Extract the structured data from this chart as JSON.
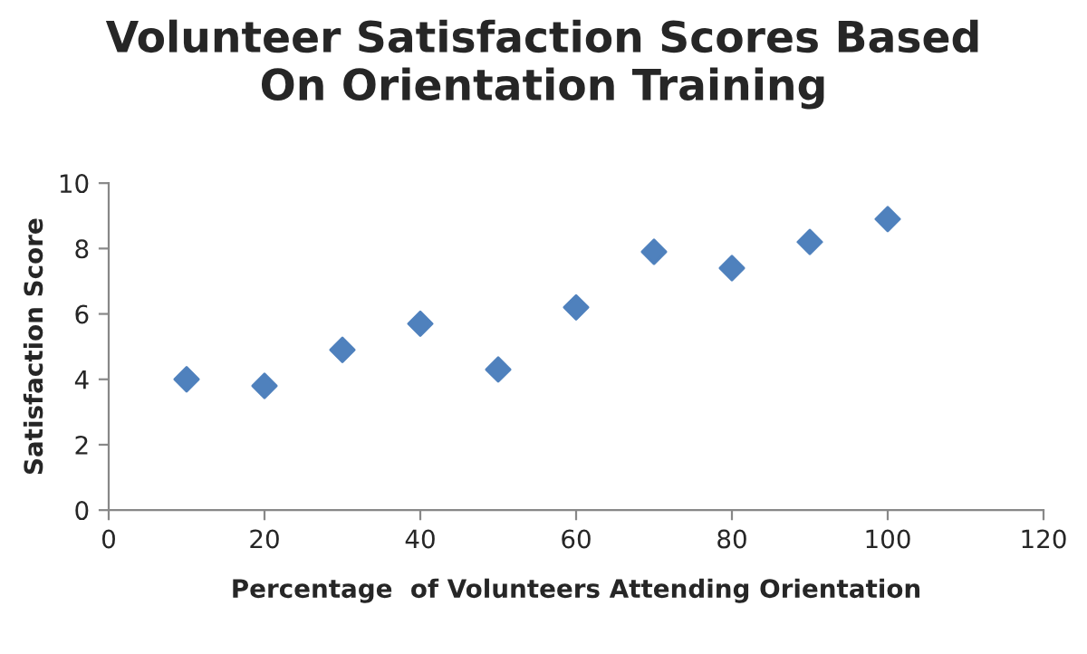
{
  "chart_data": {
    "type": "scatter",
    "title": "Volunteer Satisfaction Scores Based\nOn Orientation Training",
    "xlabel": "Percentage  of Volunteers Attending Orientation",
    "ylabel": "Satisfaction Score",
    "x": [
      10,
      20,
      30,
      40,
      50,
      60,
      70,
      80,
      90,
      100
    ],
    "series": [
      {
        "color": "#4f81bd",
        "values": [
          4.0,
          3.8,
          4.9,
          5.7,
          4.3,
          6.2,
          7.9,
          7.4,
          8.2,
          8.9
        ]
      }
    ],
    "xlim": [
      0,
      120
    ],
    "xticks": [
      0,
      20,
      40,
      60,
      80,
      100,
      120
    ],
    "ylim": [
      0,
      10
    ],
    "yticks": [
      0,
      2,
      4,
      6,
      8,
      10
    ],
    "marker": "diamond",
    "grid": false,
    "legend": false
  }
}
